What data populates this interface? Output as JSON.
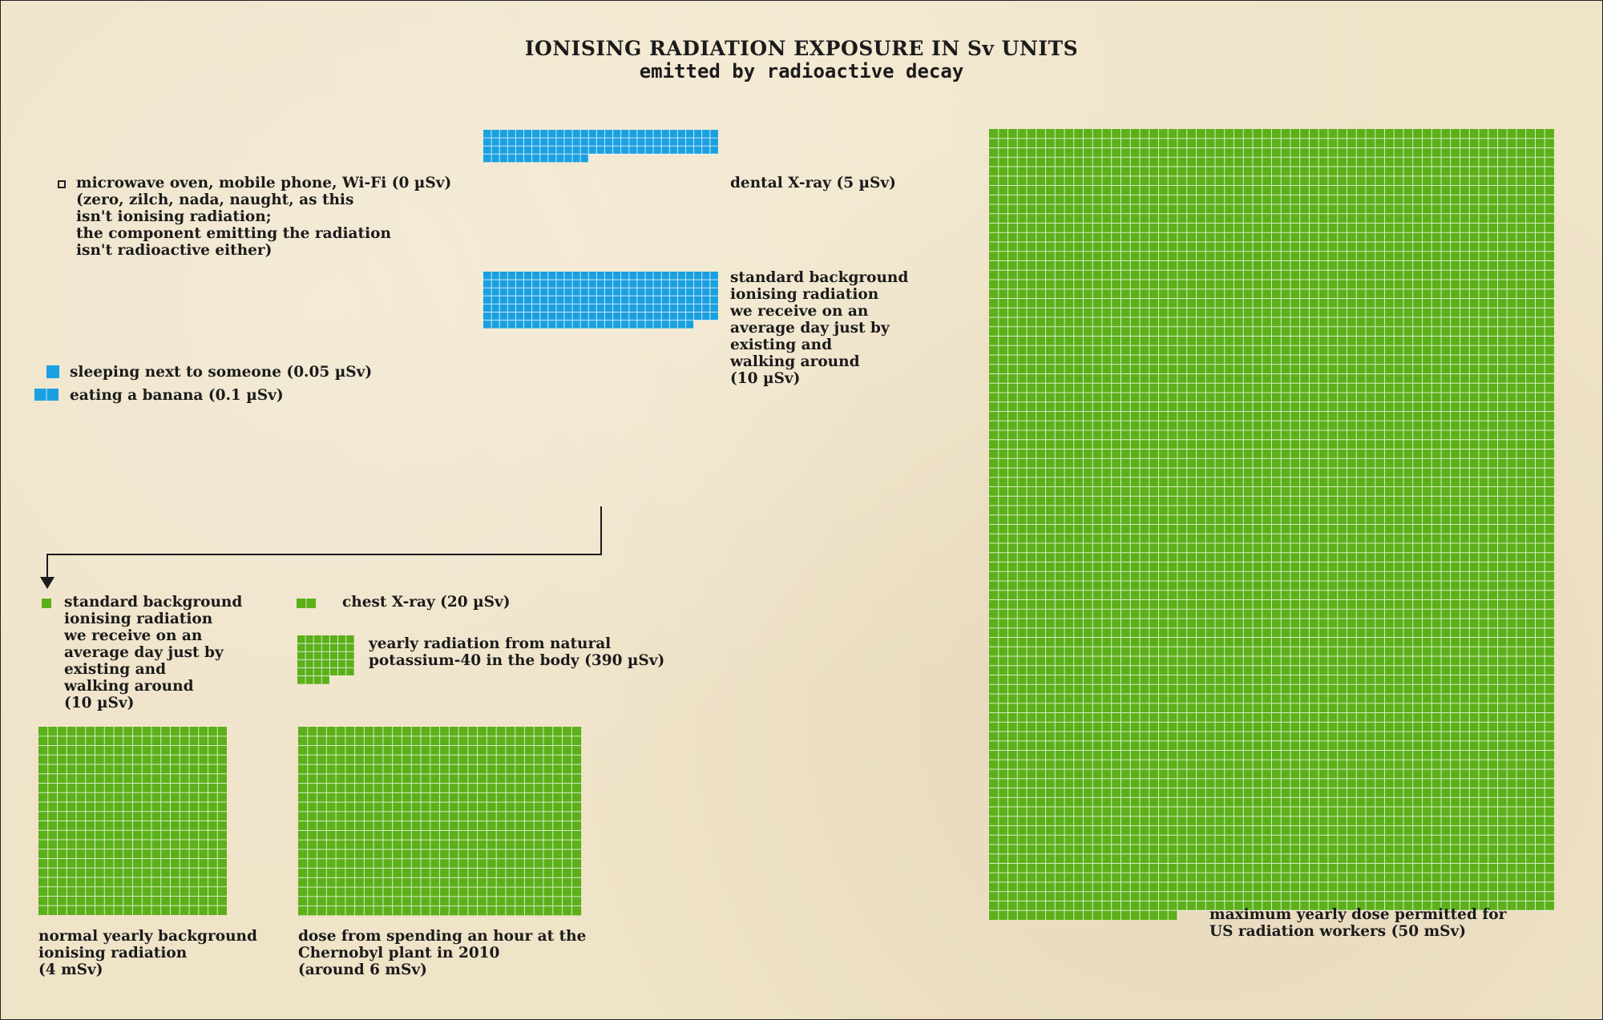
{
  "chart_data": {
    "type": "unit-grid",
    "title": "IONISING RADIATION EXPOSURE IN Sv UNITS",
    "subtitle": "emitted by radioactive decay",
    "unit_note": "each blue square = 0.05 µSv; each green square = 10 µSv",
    "colors": {
      "blue": "#1aa0e0",
      "green": "#5cb019",
      "background": "#efe3c8"
    },
    "items": [
      {
        "id": "microwave",
        "label": "microwave oven, mobile phone, Wi-Fi (0 µSv)\n(zero, zilch, nada, naught, as this\nisn't ionising radiation;\nthe component emitting the radiation\nisn't radioactive either)",
        "value": 0,
        "unit": "µSv",
        "color": "none"
      },
      {
        "id": "sleeping",
        "label": "sleeping next to someone (0.05 µSv)",
        "value": 0.05,
        "unit": "µSv",
        "color": "blue"
      },
      {
        "id": "banana",
        "label": "eating a banana (0.1 µSv)",
        "value": 0.1,
        "unit": "µSv",
        "color": "blue"
      },
      {
        "id": "dental",
        "label": "dental X-ray (5 µSv)",
        "value": 5,
        "unit": "µSv",
        "color": "blue"
      },
      {
        "id": "background-day-blue",
        "label": "standard background\nionising radiation\nwe receive on an\naverage day just by\nexisting and\nwalking around\n(10 µSv)",
        "value": 10,
        "unit": "µSv",
        "color": "blue"
      },
      {
        "id": "background-day-green",
        "label": "standard background\nionising radiation\nwe receive on an\naverage day just by\nexisting and\nwalking around\n(10 µSv)",
        "value": 10,
        "unit": "µSv",
        "color": "green"
      },
      {
        "id": "chest",
        "label": "chest X-ray (20 µSv)",
        "value": 20,
        "unit": "µSv",
        "color": "green"
      },
      {
        "id": "potassium",
        "label": "yearly radiation from natural\npotassium-40 in the body (390 µSv)",
        "value": 390,
        "unit": "µSv",
        "color": "green"
      },
      {
        "id": "yearly-bg",
        "label": "normal yearly background\nionising radiation\n(4 mSv)",
        "value": 4,
        "unit": "mSv",
        "color": "green"
      },
      {
        "id": "chernobyl",
        "label": "dose from spending an hour at the\nChernobyl plant in 2010\n(around 6 mSv)",
        "value": 6,
        "unit": "mSv",
        "color": "green"
      },
      {
        "id": "us-workers",
        "label": "maximum yearly dose permitted for\nUS radiation workers (50 mSv)",
        "value": 50,
        "unit": "mSv",
        "color": "green"
      }
    ]
  }
}
